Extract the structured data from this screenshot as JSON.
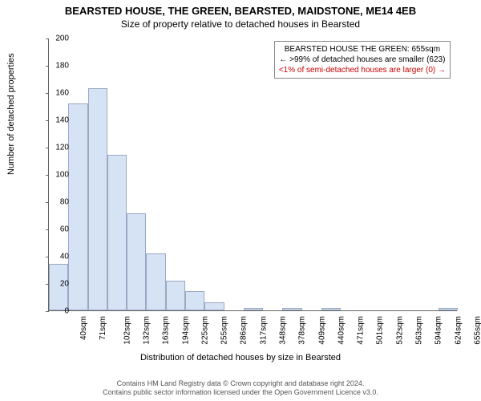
{
  "title": "BEARSTED HOUSE, THE GREEN, BEARSTED, MAIDSTONE, ME14 4EB",
  "subtitle": "Size of property relative to detached houses in Bearsted",
  "ylabel": "Number of detached properties",
  "xlabel": "Distribution of detached houses by size in Bearsted",
  "chart": {
    "type": "histogram",
    "ylim": [
      0,
      200
    ],
    "ytick_step": 20,
    "bar_fill": "#d6e3f5",
    "bar_border": "#9aa8c2",
    "background": "#ffffff",
    "categories": [
      "40sqm",
      "71sqm",
      "102sqm",
      "132sqm",
      "163sqm",
      "194sqm",
      "225sqm",
      "255sqm",
      "286sqm",
      "317sqm",
      "348sqm",
      "378sqm",
      "409sqm",
      "440sqm",
      "471sqm",
      "501sqm",
      "532sqm",
      "563sqm",
      "594sqm",
      "624sqm",
      "655sqm"
    ],
    "values": [
      34,
      152,
      163,
      114,
      71,
      42,
      22,
      14,
      6,
      0,
      2,
      0,
      2,
      0,
      2,
      0,
      0,
      0,
      0,
      0,
      2
    ]
  },
  "annotation": {
    "line1": "BEARSTED HOUSE THE GREEN: 655sqm",
    "line2": "← >99% of detached houses are smaller (623)",
    "line3": "<1% of semi-detached houses are larger (0) →"
  },
  "footer": {
    "line1": "Contains HM Land Registry data © Crown copyright and database right 2024.",
    "line2": "Contains public sector information licensed under the Open Government Licence v3.0."
  }
}
